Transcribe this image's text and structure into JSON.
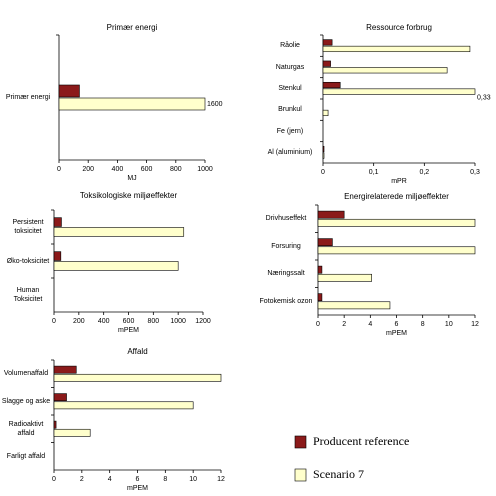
{
  "legend": [
    {
      "name": "Producent reference",
      "color": "#8b1a1a"
    },
    {
      "name": "Scenario 7",
      "color": "#ffffcc"
    }
  ],
  "chart_data": [
    {
      "type": "bar",
      "orientation": "horizontal",
      "title": "Primær energi",
      "xlabel": "MJ",
      "categories": [
        "Primær energi"
      ],
      "series": [
        {
          "values": [
            140
          ]
        },
        {
          "values": [
            1600
          ],
          "value_labels": [
            "1600"
          ]
        }
      ],
      "xlim": [
        0,
        1000
      ],
      "xticks": [
        0,
        200,
        400,
        600,
        800,
        1000
      ]
    },
    {
      "type": "bar",
      "orientation": "horizontal",
      "title": "Ressource forbrug",
      "xlabel": "mPR",
      "categories": [
        "Råolie",
        "Naturgas",
        "Stenkul",
        "Brunkul",
        "Fe (jern)",
        "Al (aluminium)"
      ],
      "series": [
        {
          "values": [
            0.018,
            0.015,
            0.034,
            0,
            0,
            0.002
          ]
        },
        {
          "values": [
            0.29,
            0.245,
            0.33,
            0.01,
            0,
            0.002
          ],
          "value_labels": [
            null,
            null,
            "0,33",
            null,
            null,
            null
          ]
        }
      ],
      "xlim": [
        0,
        0.3
      ],
      "xticks": [
        0,
        {
          "value": 0.1,
          "label": "0,1"
        },
        {
          "value": 0.2,
          "label": "0,2"
        },
        {
          "value": 0.3,
          "label": "0,3"
        }
      ]
    },
    {
      "type": "bar",
      "orientation": "horizontal",
      "title": "Toksikologiske miljøeffekter",
      "xlabel": "mPEM",
      "categories": [
        "Persistent toksicitet",
        "Øko-toksicitet",
        "Human Toksicitet"
      ],
      "series": [
        {
          "values": [
            60,
            55,
            0
          ]
        },
        {
          "values": [
            1045,
            1000,
            0
          ]
        }
      ],
      "xlim": [
        0,
        1200
      ],
      "xticks": [
        0,
        200,
        400,
        600,
        800,
        1000,
        1200
      ]
    },
    {
      "type": "bar",
      "orientation": "horizontal",
      "title": "Energirelaterede miljøeffekter",
      "xlabel": "mPEM",
      "categories": [
        "Drivhuseffekt",
        "Forsuring",
        "Næringssalt",
        "Fotokemisk ozon"
      ],
      "series": [
        {
          "values": [
            2,
            1.1,
            0.3,
            0.3
          ]
        },
        {
          "values": [
            12,
            12,
            4.1,
            5.5
          ]
        }
      ],
      "xlim": [
        0,
        12
      ],
      "xticks": [
        0,
        2,
        4,
        6,
        8,
        10,
        12
      ]
    },
    {
      "type": "bar",
      "orientation": "horizontal",
      "title": "Affald",
      "xlabel": "mPEM",
      "categories": [
        "Volumenaffald",
        "Slagge og aske",
        "Radioaktivt affald",
        "Farligt affald"
      ],
      "series": [
        {
          "values": [
            1.6,
            0.9,
            0.15,
            0
          ]
        },
        {
          "values": [
            12,
            10,
            2.6,
            0
          ]
        }
      ],
      "xlim": [
        0,
        12
      ],
      "xticks": [
        0,
        2,
        4,
        6,
        8,
        10,
        12
      ]
    }
  ]
}
